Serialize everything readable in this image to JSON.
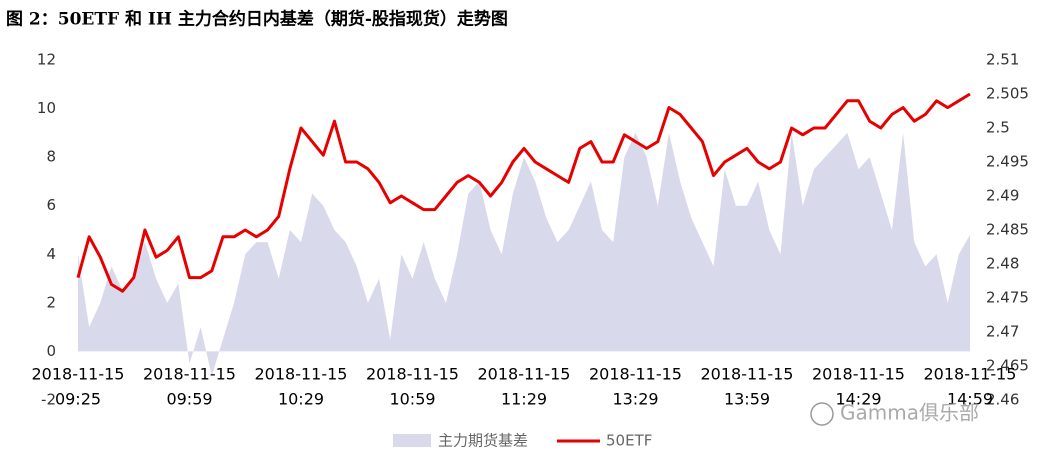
{
  "chart_data": {
    "type": "combo",
    "title": "图 2：50ETF 和 IH 主力合约日内基差（期货-股指现货）走势图",
    "watermark": "Gamma俱乐部",
    "categories": [
      [
        "2018-11-15",
        "09:25"
      ],
      null,
      null,
      null,
      null,
      null,
      null,
      null,
      null,
      null,
      [
        "2018-11-15",
        "09:59"
      ],
      null,
      null,
      null,
      null,
      null,
      null,
      null,
      null,
      null,
      [
        "2018-11-15",
        "10:29"
      ],
      null,
      null,
      null,
      null,
      null,
      null,
      null,
      null,
      null,
      [
        "2018-11-15",
        "10:59"
      ],
      null,
      null,
      null,
      null,
      null,
      null,
      null,
      null,
      null,
      [
        "2018-11-15",
        "11:29"
      ],
      null,
      null,
      null,
      null,
      null,
      null,
      null,
      null,
      null,
      [
        "2018-11-15",
        "13:29"
      ],
      null,
      null,
      null,
      null,
      null,
      null,
      null,
      null,
      null,
      [
        "2018-11-15",
        "13:59"
      ],
      null,
      null,
      null,
      null,
      null,
      null,
      null,
      null,
      null,
      [
        "2018-11-15",
        "14:29"
      ],
      null,
      null,
      null,
      null,
      null,
      null,
      null,
      null,
      null,
      [
        "2018-11-15",
        "14:59"
      ]
    ],
    "series": [
      {
        "name": "主力期货基差",
        "type": "area",
        "color": "#d9d9ec",
        "axis": "y",
        "values": [
          4,
          1,
          2,
          3.5,
          2.5,
          3,
          4.5,
          3,
          2,
          2.8,
          -0.5,
          1,
          -1,
          0.5,
          2,
          4,
          4.5,
          4.5,
          3,
          5,
          4.5,
          6.5,
          6,
          5,
          4.5,
          3.5,
          2,
          3,
          0.5,
          4,
          3,
          4.5,
          3,
          2,
          4,
          6.5,
          7,
          5,
          4,
          6.5,
          8,
          7,
          5.5,
          4.5,
          5,
          6,
          7,
          5,
          4.5,
          8,
          9,
          8,
          6,
          9,
          7,
          5.5,
          4.5,
          3.5,
          7.5,
          6,
          6,
          7,
          5,
          4,
          9,
          6,
          7.5,
          8,
          8.5,
          9,
          7.5,
          8,
          6.5,
          5,
          9,
          4.5,
          3.5,
          4,
          2,
          4,
          4.8
        ]
      },
      {
        "name": "50ETF",
        "type": "line",
        "color": "#e60000",
        "axis": "y2",
        "values": [
          2.478,
          2.484,
          2.481,
          2.477,
          2.476,
          2.478,
          2.485,
          2.481,
          2.482,
          2.484,
          2.478,
          2.478,
          2.479,
          2.484,
          2.484,
          2.485,
          2.484,
          2.485,
          2.487,
          2.494,
          2.5,
          2.498,
          2.496,
          2.501,
          2.495,
          2.495,
          2.494,
          2.492,
          2.489,
          2.49,
          2.489,
          2.488,
          2.488,
          2.49,
          2.492,
          2.493,
          2.492,
          2.49,
          2.492,
          2.495,
          2.497,
          2.495,
          2.494,
          2.493,
          2.492,
          2.497,
          2.498,
          2.495,
          2.495,
          2.499,
          2.498,
          2.497,
          2.498,
          2.503,
          2.502,
          2.5,
          2.498,
          2.493,
          2.495,
          2.496,
          2.497,
          2.495,
          2.494,
          2.495,
          2.5,
          2.499,
          2.5,
          2.5,
          2.502,
          2.504,
          2.504,
          2.501,
          2.5,
          2.502,
          2.503,
          2.501,
          2.502,
          2.504,
          2.503,
          2.504,
          2.505
        ]
      }
    ],
    "ylim": [
      -2,
      12
    ],
    "yticks": [
      -2,
      0,
      2,
      4,
      6,
      8,
      10,
      12
    ],
    "y2lim": [
      2.46,
      2.51
    ],
    "y2ticks": [
      2.46,
      2.465,
      2.47,
      2.475,
      2.48,
      2.485,
      2.49,
      2.495,
      2.5,
      2.505,
      2.51
    ],
    "grid": false,
    "legend": "bottom"
  }
}
